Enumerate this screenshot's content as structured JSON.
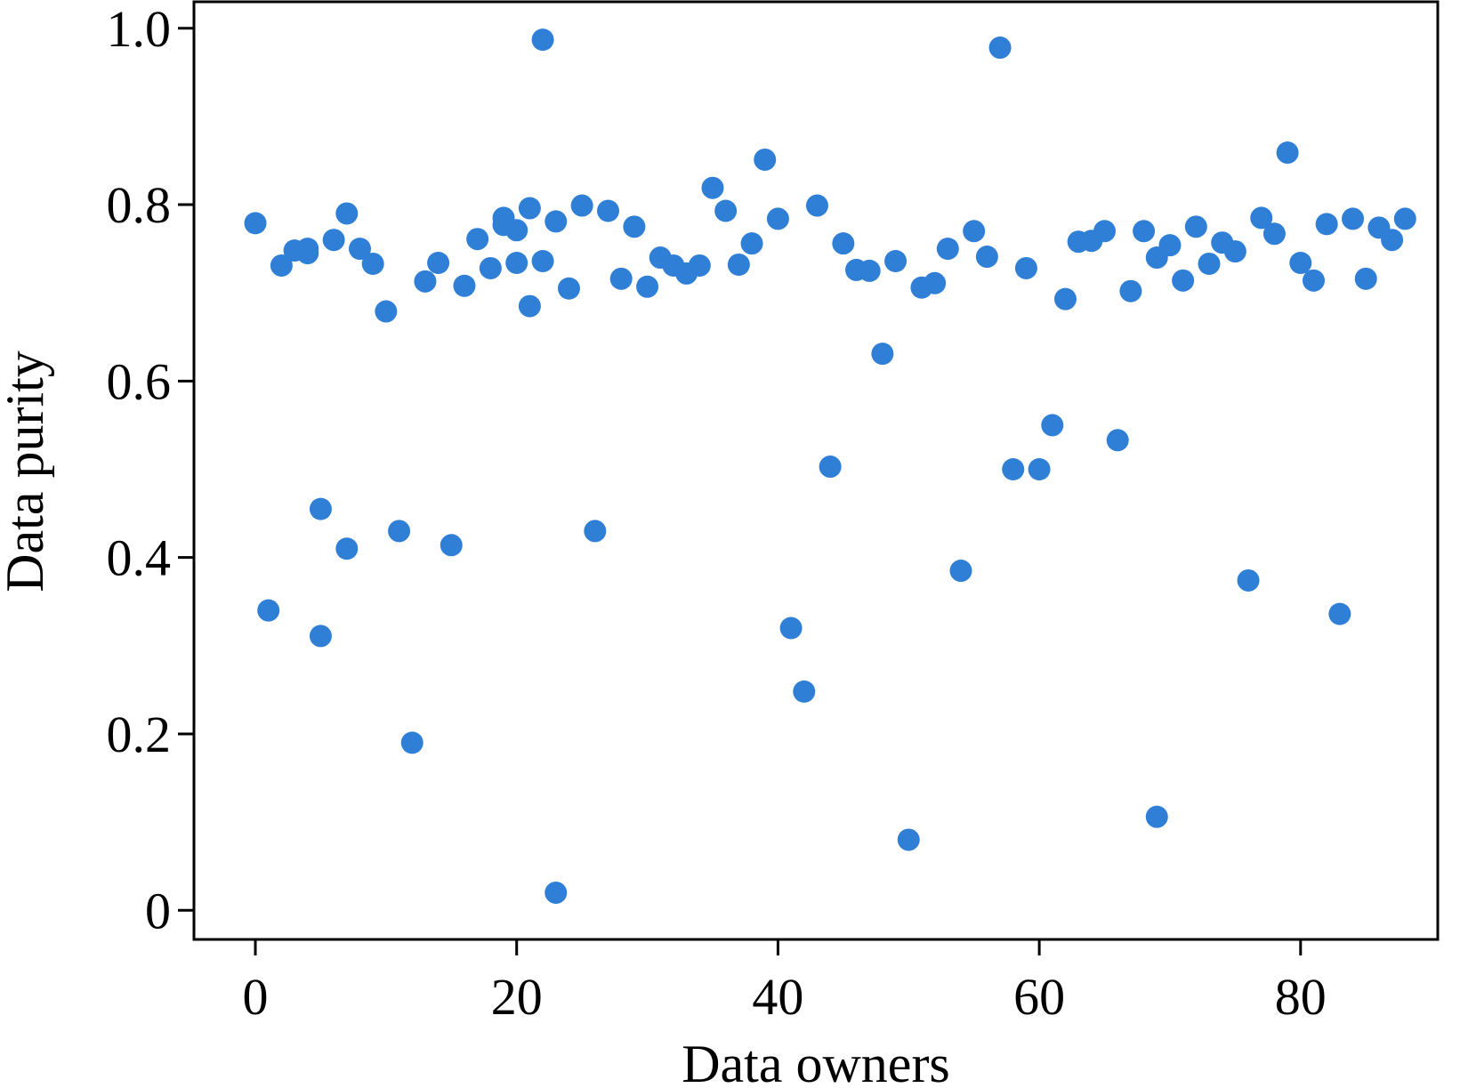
{
  "chart_data": {
    "type": "scatter",
    "xlabel": "Data owners",
    "ylabel": "Data purity",
    "xlim": [
      -4.7,
      90.5
    ],
    "ylim": [
      -0.033,
      1.03
    ],
    "xticks": [
      0,
      20,
      40,
      60,
      80
    ],
    "yticks": [
      0,
      0.2,
      0.4,
      0.6,
      0.8,
      1.0
    ],
    "xtick_labels": [
      "0",
      "20",
      "40",
      "60",
      "80"
    ],
    "ytick_labels": [
      "0",
      "0.2",
      "0.4",
      "0.6",
      "0.8",
      "1.0"
    ],
    "grid": false,
    "legend": false,
    "marker_color": "#2f7fd6",
    "points": [
      [
        0,
        0.779
      ],
      [
        1,
        0.34
      ],
      [
        2,
        0.731
      ],
      [
        3,
        0.748
      ],
      [
        4,
        0.75
      ],
      [
        4,
        0.745
      ],
      [
        5,
        0.455
      ],
      [
        5,
        0.311
      ],
      [
        6,
        0.76
      ],
      [
        7,
        0.79
      ],
      [
        7,
        0.41
      ],
      [
        8,
        0.75
      ],
      [
        9,
        0.733
      ],
      [
        10,
        0.679
      ],
      [
        11,
        0.43
      ],
      [
        12,
        0.19
      ],
      [
        13,
        0.713
      ],
      [
        14,
        0.734
      ],
      [
        15,
        0.414
      ],
      [
        16,
        0.708
      ],
      [
        17,
        0.761
      ],
      [
        18,
        0.728
      ],
      [
        19,
        0.785
      ],
      [
        19,
        0.777
      ],
      [
        20,
        0.771
      ],
      [
        20,
        0.734
      ],
      [
        21,
        0.796
      ],
      [
        21,
        0.685
      ],
      [
        22,
        0.987
      ],
      [
        22,
        0.736
      ],
      [
        23,
        0.781
      ],
      [
        23,
        0.02
      ],
      [
        24,
        0.705
      ],
      [
        25,
        0.799
      ],
      [
        26,
        0.43
      ],
      [
        27,
        0.793
      ],
      [
        28,
        0.716
      ],
      [
        29,
        0.775
      ],
      [
        30,
        0.707
      ],
      [
        31,
        0.74
      ],
      [
        32,
        0.731
      ],
      [
        33,
        0.722
      ],
      [
        34,
        0.731
      ],
      [
        35,
        0.819
      ],
      [
        36,
        0.793
      ],
      [
        37,
        0.732
      ],
      [
        38,
        0.756
      ],
      [
        39,
        0.851
      ],
      [
        40,
        0.784
      ],
      [
        41,
        0.32
      ],
      [
        42,
        0.248
      ],
      [
        43,
        0.799
      ],
      [
        44,
        0.503
      ],
      [
        45,
        0.756
      ],
      [
        46,
        0.726
      ],
      [
        47,
        0.725
      ],
      [
        48,
        0.631
      ],
      [
        49,
        0.736
      ],
      [
        50,
        0.08
      ],
      [
        51,
        0.706
      ],
      [
        52,
        0.711
      ],
      [
        53,
        0.75
      ],
      [
        54,
        0.385
      ],
      [
        55,
        0.77
      ],
      [
        56,
        0.741
      ],
      [
        57,
        0.978
      ],
      [
        58,
        0.5
      ],
      [
        59,
        0.728
      ],
      [
        60,
        0.5
      ],
      [
        61,
        0.55
      ],
      [
        62,
        0.693
      ],
      [
        63,
        0.758
      ],
      [
        64,
        0.759
      ],
      [
        65,
        0.77
      ],
      [
        66,
        0.533
      ],
      [
        67,
        0.702
      ],
      [
        68,
        0.77
      ],
      [
        69,
        0.74
      ],
      [
        69,
        0.106
      ],
      [
        70,
        0.754
      ],
      [
        71,
        0.714
      ],
      [
        72,
        0.775
      ],
      [
        73,
        0.733
      ],
      [
        74,
        0.757
      ],
      [
        75,
        0.747
      ],
      [
        76,
        0.374
      ],
      [
        77,
        0.785
      ],
      [
        78,
        0.767
      ],
      [
        79,
        0.859
      ],
      [
        80,
        0.734
      ],
      [
        81,
        0.714
      ],
      [
        82,
        0.778
      ],
      [
        83,
        0.336
      ],
      [
        84,
        0.784
      ],
      [
        85,
        0.716
      ],
      [
        86,
        0.774
      ],
      [
        87,
        0.76
      ],
      [
        88,
        0.784
      ]
    ]
  }
}
